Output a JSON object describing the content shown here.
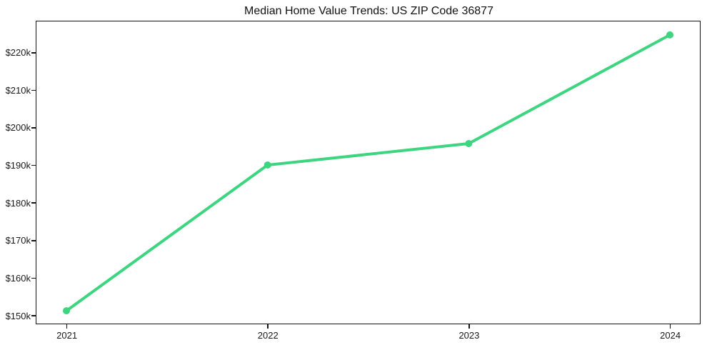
{
  "chart_data": {
    "type": "line",
    "title": "Median Home Value Trends: US ZIP Code 36877",
    "categories": [
      "2021",
      "2022",
      "2023",
      "2024"
    ],
    "values": [
      151200,
      190000,
      195700,
      224600
    ],
    "xlabel": "",
    "ylabel": "",
    "ylim": [
      147800,
      228200
    ],
    "yticks": [
      {
        "value": 150000,
        "label": "$150k"
      },
      {
        "value": 160000,
        "label": "$160k"
      },
      {
        "value": 170000,
        "label": "$170k"
      },
      {
        "value": 180000,
        "label": "$180k"
      },
      {
        "value": 190000,
        "label": "$190k"
      },
      {
        "value": 200000,
        "label": "$200k"
      },
      {
        "value": 210000,
        "label": "$210k"
      },
      {
        "value": 220000,
        "label": "$220k"
      }
    ],
    "grid": false,
    "legend": "none",
    "marker": "circle"
  },
  "colors": {
    "line": "#3dd57f",
    "marker": "#3dd57f",
    "text": "#1a1a1a",
    "spine": "#151515",
    "background": "#ffffff"
  }
}
